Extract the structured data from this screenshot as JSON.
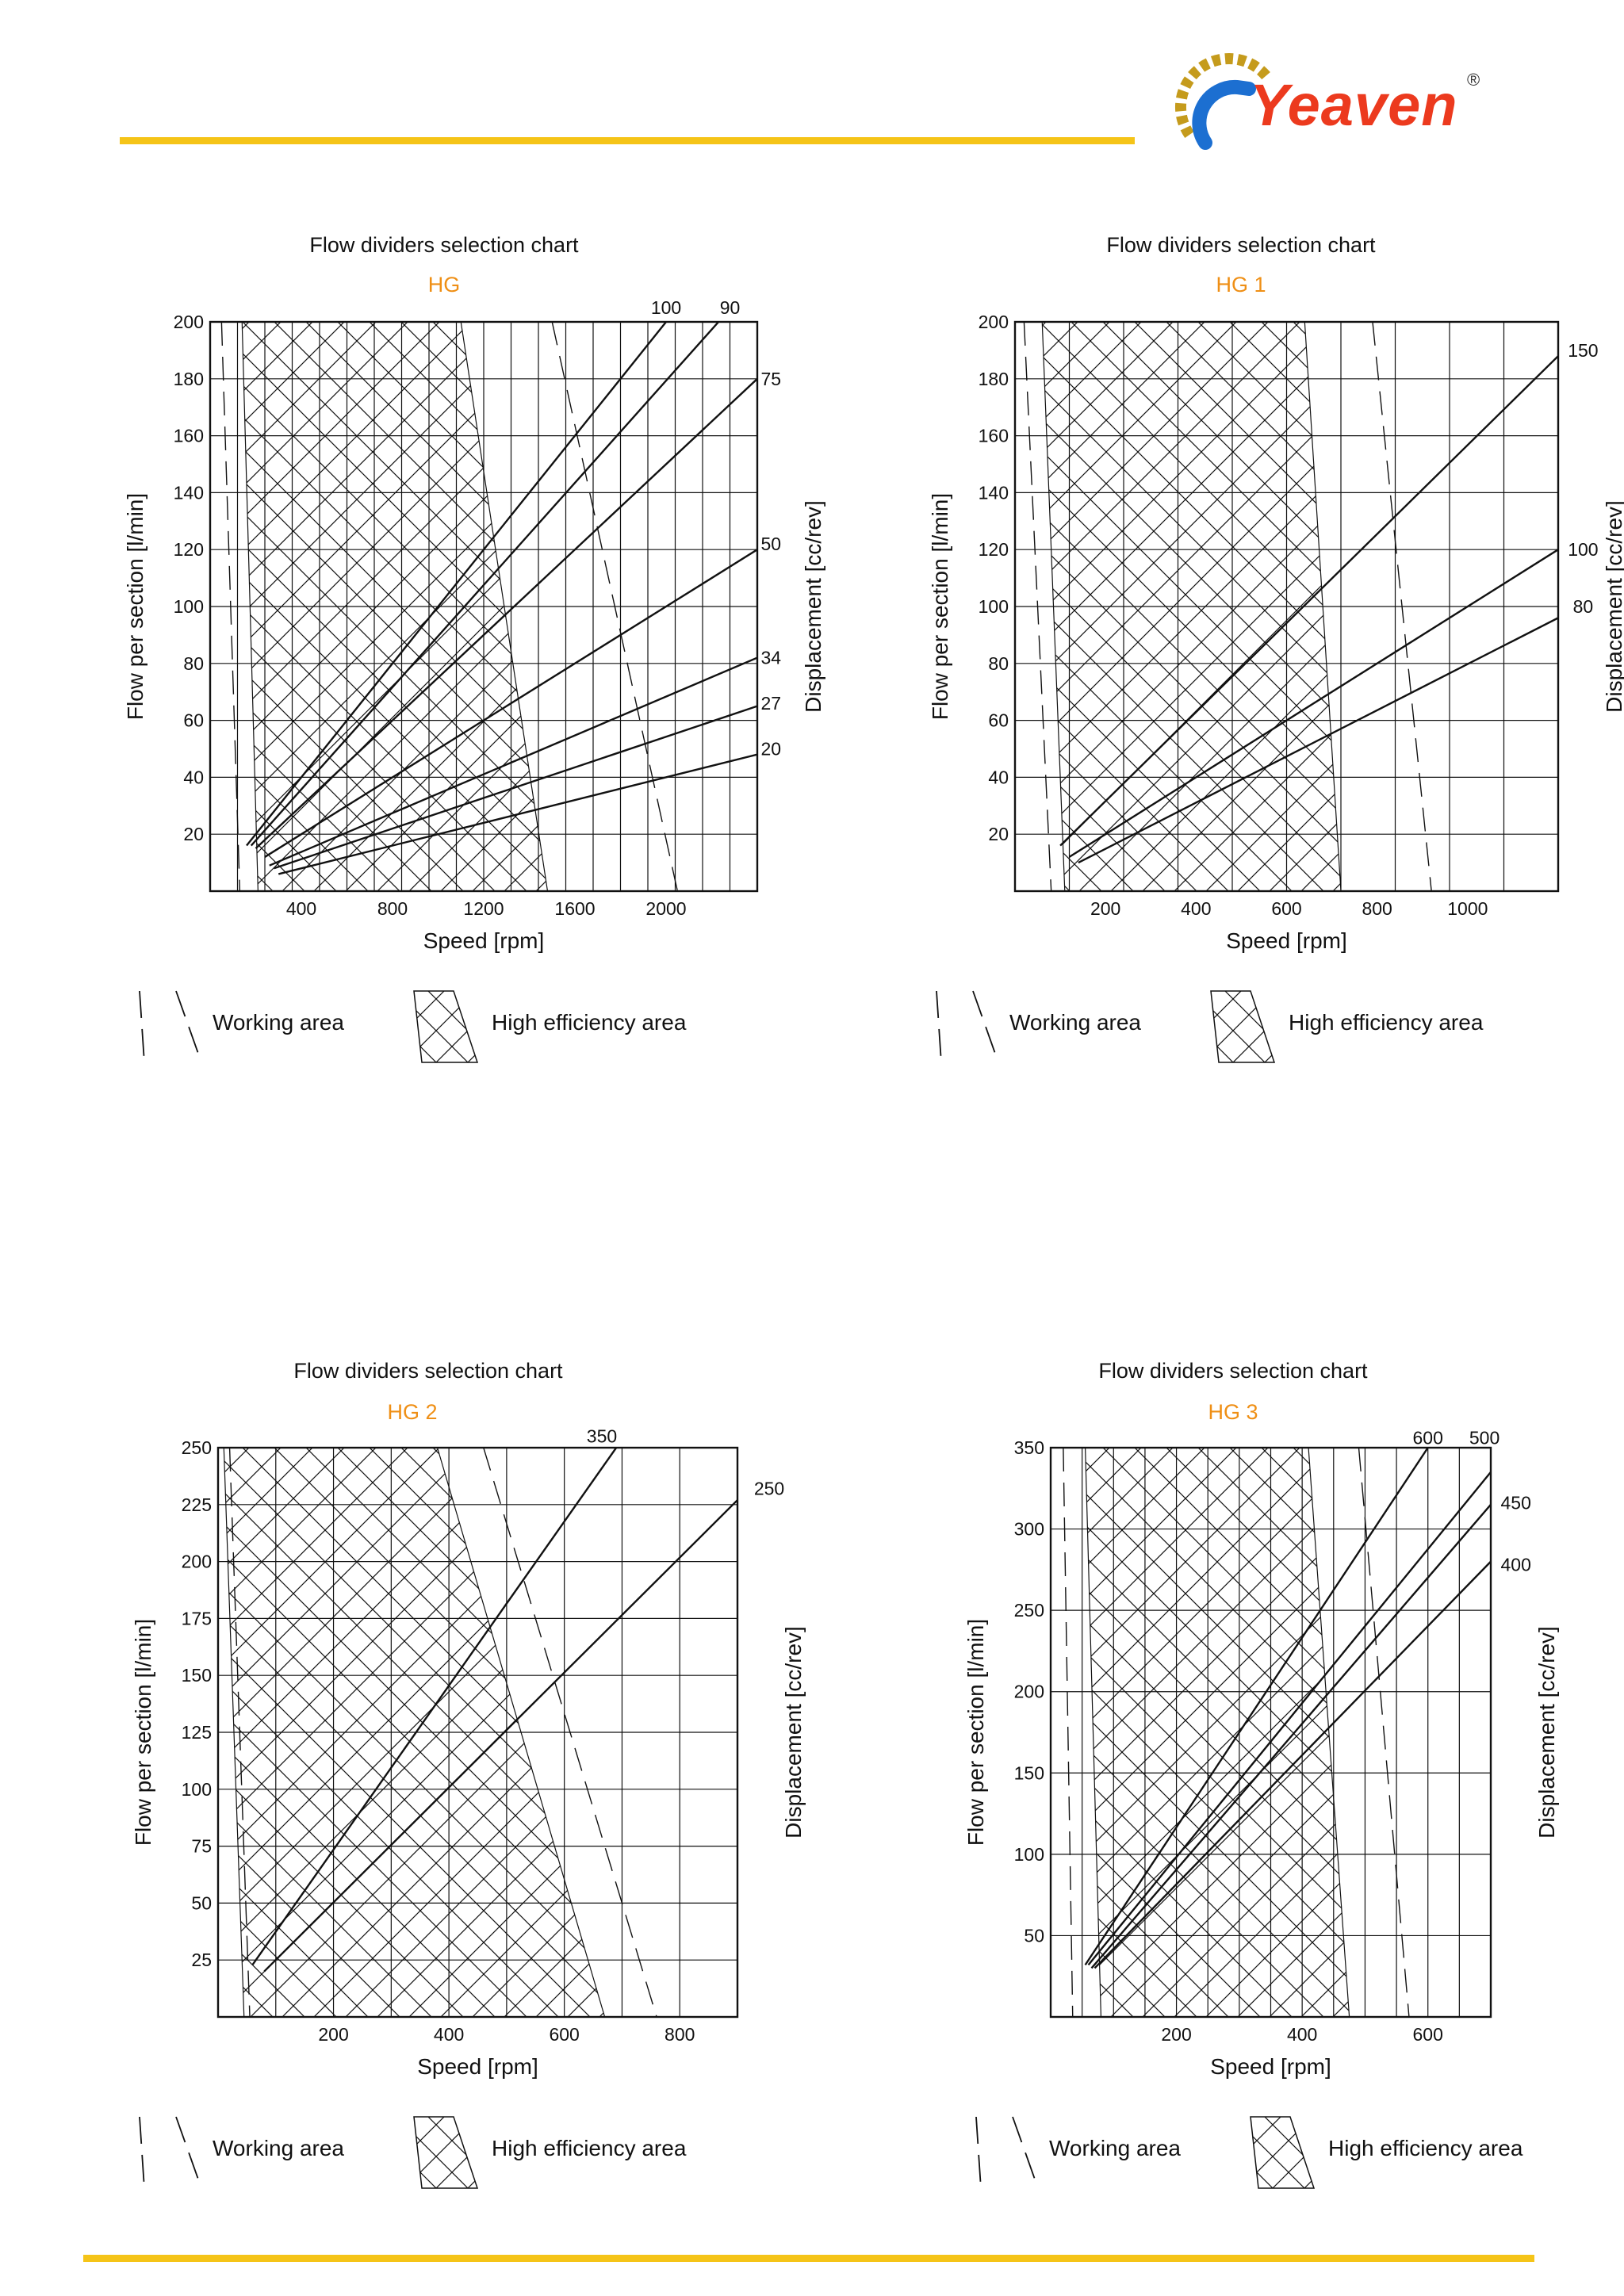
{
  "brand": {
    "name": "Yeaven",
    "mark": "®",
    "colors": {
      "accent": "#f5c418",
      "logo_red": "#ec3a1e",
      "logo_blue": "#1c6fd1",
      "subtitle": "#ef8f15"
    }
  },
  "legend": {
    "working": "Working area",
    "high": "High efficiency area"
  },
  "chart_data": [
    {
      "type": "line",
      "title": "Flow dividers selection chart",
      "subtitle": "HG",
      "xlabel": "Speed [rpm]",
      "ylabel": "Flow per section [l/min]",
      "y2label": "Displacement [cc/rev]",
      "xlim": [
        0,
        2400
      ],
      "ylim": [
        0,
        200
      ],
      "xticks": [
        400,
        800,
        1200,
        1600,
        2000
      ],
      "xtick_labels": [
        "400",
        "800",
        "1200",
        "1600",
        "2000"
      ],
      "yticks": [
        20,
        40,
        60,
        80,
        100,
        120,
        140,
        160,
        180,
        200
      ],
      "ytick_labels": [
        "20",
        "40",
        "60",
        "80",
        "100",
        "120",
        "140",
        "160",
        "180",
        "200"
      ],
      "grid_x": [
        120,
        240,
        360,
        480,
        600,
        720,
        840,
        960,
        1080,
        1200,
        1320,
        1440,
        1560,
        1680,
        1800,
        1920,
        2040,
        2160,
        2280
      ],
      "grid_y": [
        20,
        40,
        60,
        80,
        100,
        120,
        140,
        160,
        180
      ],
      "working": {
        "left": [
          [
            50,
            200
          ],
          [
            130,
            0
          ]
        ],
        "right": [
          [
            1500,
            200
          ],
          [
            2050,
            0
          ]
        ]
      },
      "high": [
        [
          140,
          200
        ],
        [
          1100,
          200
        ],
        [
          1480,
          0
        ],
        [
          210,
          0
        ]
      ],
      "series": [
        {
          "name": "100",
          "points": [
            [
              160,
              16
            ],
            [
              2000,
              200
            ]
          ],
          "label_at": [
            2000,
            205
          ]
        },
        {
          "name": "90",
          "points": [
            [
              180,
              16
            ],
            [
              2230,
              200
            ]
          ],
          "label_at": [
            2280,
            205
          ]
        },
        {
          "name": "75",
          "points": [
            [
              200,
              15
            ],
            [
              2400,
              180
            ]
          ],
          "label_at": [
            2460,
            180
          ]
        },
        {
          "name": "50",
          "points": [
            [
              240,
              12
            ],
            [
              2400,
              120
            ]
          ],
          "label_at": [
            2460,
            122
          ]
        },
        {
          "name": "34",
          "points": [
            [
              260,
              9
            ],
            [
              2400,
              82
            ]
          ],
          "label_at": [
            2460,
            82
          ]
        },
        {
          "name": "27",
          "points": [
            [
              280,
              8
            ],
            [
              2400,
              65
            ]
          ],
          "label_at": [
            2460,
            66
          ]
        },
        {
          "name": "20",
          "points": [
            [
              300,
              6
            ],
            [
              2400,
              48
            ]
          ],
          "label_at": [
            2460,
            50
          ]
        }
      ]
    },
    {
      "type": "line",
      "title": "Flow dividers selection chart",
      "subtitle": "HG 1",
      "xlabel": "Speed [rpm]",
      "ylabel": "Flow per section [l/min]",
      "y2label": "Displacement [cc/rev]",
      "xlim": [
        0,
        1200
      ],
      "ylim": [
        0,
        200
      ],
      "xticks": [
        200,
        400,
        600,
        800,
        1000
      ],
      "xtick_labels": [
        "200",
        "400",
        "600",
        "800",
        "1000"
      ],
      "yticks": [
        20,
        40,
        60,
        80,
        100,
        120,
        140,
        160,
        180,
        200
      ],
      "ytick_labels": [
        "20",
        "40",
        "60",
        "80",
        "100",
        "120",
        "140",
        "160",
        "180",
        "200"
      ],
      "grid_x": [
        120,
        240,
        360,
        480,
        600,
        720,
        840,
        960,
        1080
      ],
      "grid_y": [
        20,
        40,
        60,
        80,
        100,
        120,
        140,
        160,
        180
      ],
      "working": {
        "left": [
          [
            20,
            200
          ],
          [
            80,
            0
          ]
        ],
        "right": [
          [
            790,
            200
          ],
          [
            920,
            0
          ]
        ]
      },
      "high": [
        [
          60,
          200
        ],
        [
          640,
          200
        ],
        [
          720,
          0
        ],
        [
          110,
          0
        ]
      ],
      "series": [
        {
          "name": "150",
          "points": [
            [
              100,
              16
            ],
            [
              1200,
              188
            ]
          ],
          "label_at": [
            1255,
            190
          ]
        },
        {
          "name": "100",
          "points": [
            [
              120,
              12
            ],
            [
              1200,
              120
            ]
          ],
          "label_at": [
            1255,
            120
          ]
        },
        {
          "name": "80",
          "points": [
            [
              140,
              10
            ],
            [
              1200,
              96
            ]
          ],
          "label_at": [
            1255,
            100
          ]
        }
      ]
    },
    {
      "type": "line",
      "title": "Flow dividers selection chart",
      "subtitle": "HG 2",
      "xlabel": "Speed [rpm]",
      "ylabel": "Flow per section [l/min]",
      "y2label": "Displacement [cc/rev]",
      "xlim": [
        0,
        900
      ],
      "ylim": [
        0,
        250
      ],
      "xticks": [
        200,
        400,
        600,
        800
      ],
      "xtick_labels": [
        "200",
        "400",
        "600",
        "800"
      ],
      "yticks": [
        25,
        50,
        75,
        100,
        125,
        150,
        175,
        200,
        225,
        250
      ],
      "ytick_labels": [
        "25",
        "50",
        "75",
        "100",
        "125",
        "150",
        "175",
        "200",
        "225",
        "250"
      ],
      "grid_x": [
        100,
        200,
        300,
        400,
        500,
        600,
        700,
        800
      ],
      "grid_y": [
        25,
        50,
        75,
        100,
        125,
        150,
        175,
        200,
        225
      ],
      "working": {
        "left": [
          [
            20,
            250
          ],
          [
            55,
            0
          ]
        ],
        "right": [
          [
            460,
            250
          ],
          [
            760,
            0
          ]
        ]
      },
      "high": [
        [
          10,
          250
        ],
        [
          380,
          250
        ],
        [
          670,
          0
        ],
        [
          45,
          0
        ]
      ],
      "series": [
        {
          "name": "350",
          "points": [
            [
              60,
              23
            ],
            [
              690,
              250
            ]
          ],
          "label_at": [
            665,
            255
          ]
        },
        {
          "name": "250",
          "points": [
            [
              80,
              20
            ],
            [
              900,
              227
            ]
          ],
          "label_at": [
            955,
            232
          ]
        }
      ]
    },
    {
      "type": "line",
      "title": "Flow dividers selection chart",
      "subtitle": "HG 3",
      "xlabel": "Speed [rpm]",
      "ylabel": "Flow per section [l/min]",
      "y2label": "Displacement [cc/rev]",
      "xlim": [
        0,
        700
      ],
      "ylim": [
        0,
        350
      ],
      "xticks": [
        200,
        400,
        600
      ],
      "xtick_labels": [
        "200",
        "400",
        "600"
      ],
      "yticks": [
        50,
        100,
        150,
        200,
        250,
        300,
        350
      ],
      "ytick_labels": [
        "50",
        "100",
        "150",
        "200",
        "250",
        "300",
        "350"
      ],
      "grid_x": [
        50,
        100,
        150,
        200,
        250,
        300,
        350,
        400,
        450,
        500,
        550,
        600,
        650
      ],
      "grid_y": [
        50,
        100,
        150,
        200,
        250,
        300
      ],
      "working": {
        "left": [
          [
            20,
            350
          ],
          [
            35,
            0
          ]
        ],
        "right": [
          [
            490,
            350
          ],
          [
            570,
            0
          ]
        ]
      },
      "high": [
        [
          55,
          350
        ],
        [
          410,
          350
        ],
        [
          475,
          0
        ],
        [
          80,
          0
        ]
      ],
      "series": [
        {
          "name": "600",
          "points": [
            [
              55,
              32
            ],
            [
              600,
              350
            ]
          ],
          "label_at": [
            600,
            356
          ]
        },
        {
          "name": "500",
          "points": [
            [
              60,
              32
            ],
            [
              700,
              335
            ]
          ],
          "label_at": [
            690,
            356
          ]
        },
        {
          "name": "450",
          "points": [
            [
              65,
              30
            ],
            [
              700,
              315
            ]
          ],
          "label_at": [
            740,
            316
          ]
        },
        {
          "name": "400",
          "points": [
            [
              70,
              30
            ],
            [
              700,
              280
            ]
          ],
          "label_at": [
            740,
            278
          ]
        }
      ]
    }
  ]
}
